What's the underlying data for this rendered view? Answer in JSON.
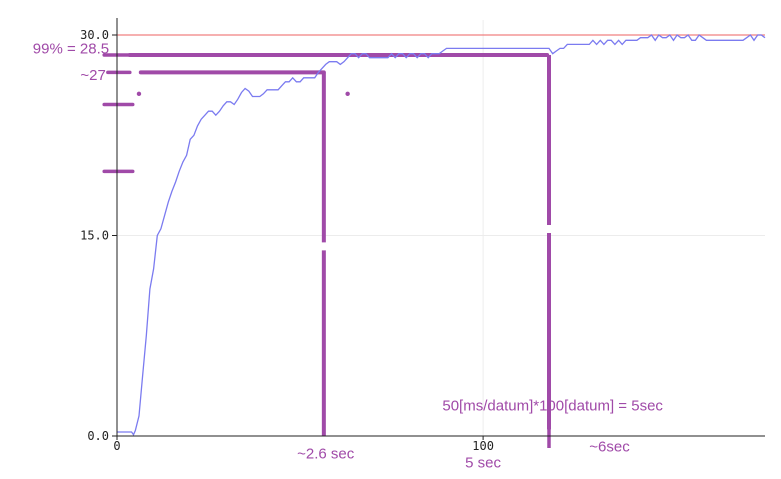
{
  "chart_data": {
    "type": "line",
    "title": "",
    "xlabel": "",
    "ylabel": "",
    "xlim": [
      0,
      177
    ],
    "ylim": [
      0,
      30
    ],
    "grid": true,
    "x_ticks": [
      {
        "value": 0,
        "label": "0"
      },
      {
        "value": 100,
        "label": "100"
      }
    ],
    "y_ticks": [
      {
        "value": 0,
        "label": "0.0"
      },
      {
        "value": 15,
        "label": "15.0"
      },
      {
        "value": 30,
        "label": "30.0"
      }
    ],
    "reference_line": {
      "y": 30,
      "color": "#f08080"
    },
    "series": [
      {
        "color": "#7b7bf0",
        "points": [
          [
            0,
            0.3
          ],
          [
            2,
            0.3
          ],
          [
            4,
            0.3
          ],
          [
            4.5,
            0.1
          ],
          [
            5,
            0.4
          ],
          [
            6,
            1.5
          ],
          [
            7,
            4.5
          ],
          [
            8,
            7.5
          ],
          [
            9,
            11
          ],
          [
            10,
            12.5
          ],
          [
            11,
            15
          ],
          [
            12,
            15.5
          ],
          [
            13,
            16.5
          ],
          [
            14,
            17.5
          ],
          [
            15,
            18.3
          ],
          [
            16,
            19
          ],
          [
            17,
            19.8
          ],
          [
            18,
            20.5
          ],
          [
            19,
            21
          ],
          [
            20,
            22.2
          ],
          [
            21,
            22.5
          ],
          [
            22,
            23.2
          ],
          [
            23,
            23.7
          ],
          [
            24,
            24
          ],
          [
            25,
            24.3
          ],
          [
            26,
            24.3
          ],
          [
            27,
            24
          ],
          [
            28,
            24.3
          ],
          [
            29,
            24.7
          ],
          [
            30,
            25
          ],
          [
            31,
            25
          ],
          [
            32,
            24.8
          ],
          [
            33,
            25.2
          ],
          [
            34,
            25.7
          ],
          [
            35,
            26
          ],
          [
            36,
            25.8
          ],
          [
            37,
            25.4
          ],
          [
            38,
            25.4
          ],
          [
            39,
            25.4
          ],
          [
            40,
            25.6
          ],
          [
            41,
            25.9
          ],
          [
            42,
            25.9
          ],
          [
            43,
            25.9
          ],
          [
            44,
            25.9
          ],
          [
            45,
            26.2
          ],
          [
            46,
            26.5
          ],
          [
            47,
            26.5
          ],
          [
            48,
            26.8
          ],
          [
            49,
            26.5
          ],
          [
            50,
            26.5
          ],
          [
            51,
            26.8
          ],
          [
            52,
            26.8
          ],
          [
            53,
            26.8
          ],
          [
            54,
            26.8
          ],
          [
            55,
            27.2
          ],
          [
            56,
            27.5
          ],
          [
            57,
            27.8
          ],
          [
            58,
            28
          ],
          [
            59,
            28
          ],
          [
            60,
            28
          ],
          [
            61,
            27.8
          ],
          [
            62,
            28
          ],
          [
            63,
            28.3
          ],
          [
            64,
            28.6
          ],
          [
            65,
            28.6
          ],
          [
            66,
            28.3
          ],
          [
            67,
            28.6
          ],
          [
            68,
            28.6
          ],
          [
            69,
            28.3
          ],
          [
            70,
            28.3
          ],
          [
            71,
            28.3
          ],
          [
            72,
            28.3
          ],
          [
            73,
            28.3
          ],
          [
            74,
            28.3
          ],
          [
            75,
            28.6
          ],
          [
            76,
            28.3
          ],
          [
            77,
            28.6
          ],
          [
            78,
            28.6
          ],
          [
            79,
            28.3
          ],
          [
            80,
            28.6
          ],
          [
            81,
            28.6
          ],
          [
            82,
            28.3
          ],
          [
            83,
            28.6
          ],
          [
            84,
            28.6
          ],
          [
            85,
            28.3
          ],
          [
            86,
            28.6
          ],
          [
            87,
            28.6
          ],
          [
            88,
            28.6
          ],
          [
            89,
            28.8
          ],
          [
            90,
            29
          ],
          [
            92,
            29
          ],
          [
            94,
            29
          ],
          [
            96,
            29
          ],
          [
            98,
            29
          ],
          [
            100,
            29
          ],
          [
            102,
            29
          ],
          [
            104,
            29
          ],
          [
            106,
            29
          ],
          [
            108,
            29
          ],
          [
            110,
            29
          ],
          [
            112,
            29
          ],
          [
            114,
            29
          ],
          [
            116,
            29
          ],
          [
            117,
            29
          ],
          [
            118,
            29
          ],
          [
            119,
            28.6
          ],
          [
            120,
            28.8
          ],
          [
            121,
            29
          ],
          [
            122,
            29
          ],
          [
            123,
            29.3
          ],
          [
            125,
            29.3
          ],
          [
            127,
            29.3
          ],
          [
            129,
            29.3
          ],
          [
            130,
            29.6
          ],
          [
            131,
            29.3
          ],
          [
            132,
            29.6
          ],
          [
            133,
            29.3
          ],
          [
            134,
            29.6
          ],
          [
            135,
            29.6
          ],
          [
            136,
            29.3
          ],
          [
            137,
            29.6
          ],
          [
            138,
            29.3
          ],
          [
            139,
            29.6
          ],
          [
            140,
            29.6
          ],
          [
            141,
            29.6
          ],
          [
            142,
            29.6
          ],
          [
            143,
            29.8
          ],
          [
            144,
            29.8
          ],
          [
            145,
            29.8
          ],
          [
            146,
            30
          ],
          [
            147,
            29.6
          ],
          [
            148,
            30
          ],
          [
            149,
            29.8
          ],
          [
            150,
            29.8
          ],
          [
            151,
            30
          ],
          [
            152,
            29.6
          ],
          [
            153,
            30
          ],
          [
            154,
            29.8
          ],
          [
            155,
            29.8
          ],
          [
            156,
            30
          ],
          [
            157,
            29.6
          ],
          [
            158,
            29.6
          ],
          [
            159,
            30
          ],
          [
            160,
            29.8
          ],
          [
            161,
            29.6
          ],
          [
            162,
            29.6
          ],
          [
            163,
            29.6
          ],
          [
            164,
            29.6
          ],
          [
            165,
            29.6
          ],
          [
            166,
            29.6
          ],
          [
            167,
            29.6
          ],
          [
            168,
            29.6
          ],
          [
            169,
            29.6
          ],
          [
            170,
            29.6
          ],
          [
            171,
            29.6
          ],
          [
            172,
            29.8
          ],
          [
            173,
            30
          ],
          [
            174,
            29.6
          ],
          [
            175,
            30
          ],
          [
            176,
            30
          ],
          [
            177,
            29.8
          ]
        ]
      }
    ],
    "annotations": {
      "color": "#a04aa8",
      "labels": [
        {
          "text": "99% = 28.5",
          "x": -23,
          "y": 29
        },
        {
          "text": "~27",
          "x": -10,
          "y": 27
        },
        {
          "text": "~2.6 sec",
          "x": 57,
          "y": -1.3
        },
        {
          "text": "5 sec",
          "x": 100,
          "y": -2
        },
        {
          "text": "~6sec",
          "x": 129,
          "y": -0.8
        },
        {
          "text": "50[ms/datum]*100[datum] = 5sec",
          "x": 119,
          "y": 2.3
        }
      ],
      "hlines": [
        {
          "x1": 3.5,
          "x2": 117.5,
          "y": 28.5
        },
        {
          "x1": 6.5,
          "x2": 56.5,
          "y": 27.2
        }
      ],
      "vlines": [
        {
          "x": 56.5,
          "y1": 27.2,
          "y2": 0
        },
        {
          "x": 118,
          "y1": 28.5,
          "y2": 0.5
        }
      ],
      "left_dashes": [
        {
          "x1": -3.5,
          "x2": 3.5,
          "y": 28.5
        },
        {
          "x1": -2.5,
          "x2": 3.5,
          "y": 27.2
        },
        {
          "x1": -3.5,
          "x2": 4.3,
          "y": 24.8
        },
        {
          "x1": -3.5,
          "x2": 4.3,
          "y": 19.8
        }
      ],
      "dots": [
        {
          "x": 6,
          "y": 25.6
        },
        {
          "x": 63,
          "y": 25.6
        }
      ]
    }
  }
}
